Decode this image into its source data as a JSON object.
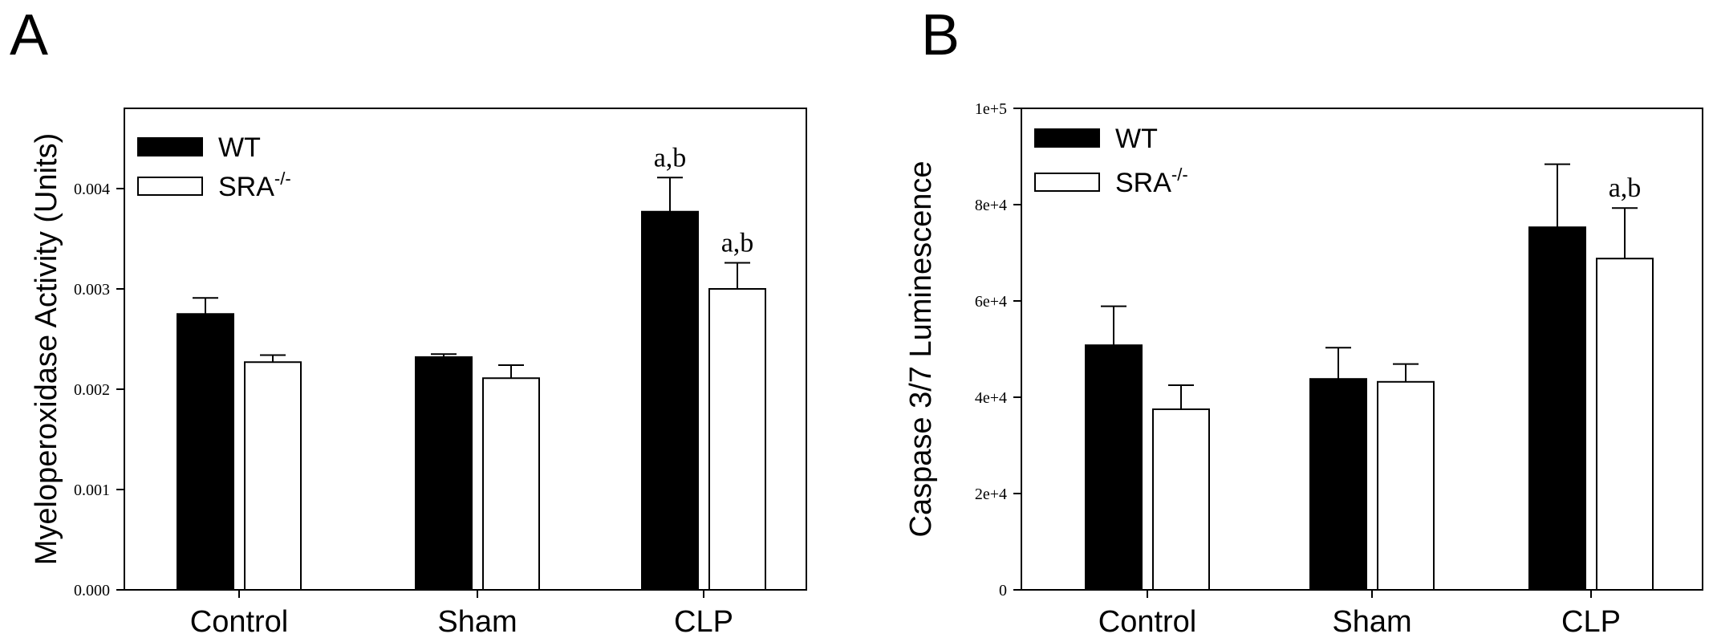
{
  "chart_data": [
    {
      "panel_label": "A",
      "type": "bar",
      "ylabel": "Myeloperoxidase Activity (Units)",
      "categories": [
        "Control",
        "Sham",
        "CLP"
      ],
      "ylim": [
        0,
        0.0048
      ],
      "yticks": [
        0,
        0.001,
        0.002,
        0.003,
        0.004
      ],
      "ytick_labels": [
        "0.000",
        "0.001",
        "0.002",
        "0.003",
        "0.004"
      ],
      "legend": {
        "position": "top-left"
      },
      "series": [
        {
          "name": "WT",
          "fill": "#000000",
          "values": [
            0.00275,
            0.00232,
            0.00377
          ],
          "errors": [
            0.00016,
            3e-05,
            0.00034
          ],
          "annotations": [
            "",
            "",
            "a,b"
          ]
        },
        {
          "name": "SRA",
          "name_sup": "-/-",
          "fill": "#ffffff",
          "values": [
            0.00227,
            0.00211,
            0.003
          ],
          "errors": [
            7e-05,
            0.00013,
            0.00026
          ],
          "annotations": [
            "",
            "",
            "a,b"
          ]
        }
      ]
    },
    {
      "panel_label": "B",
      "type": "bar",
      "ylabel": "Caspase 3/7 Luminescence",
      "categories": [
        "Control",
        "Sham",
        "CLP"
      ],
      "ylim": [
        0,
        100000
      ],
      "yticks": [
        0,
        20000,
        40000,
        60000,
        80000,
        100000
      ],
      "ytick_labels": [
        "0",
        "2e+4",
        "4e+4",
        "6e+4",
        "8e+4",
        "1e+5"
      ],
      "legend": {
        "position": "top-left"
      },
      "series": [
        {
          "name": "WT",
          "fill": "#000000",
          "values": [
            50800,
            43800,
            75300
          ],
          "errors": [
            8100,
            6500,
            13100
          ],
          "annotations": [
            "",
            "",
            ""
          ]
        },
        {
          "name": "SRA",
          "name_sup": "-/-",
          "fill": "#ffffff",
          "values": [
            37500,
            43200,
            68800
          ],
          "errors": [
            5000,
            3700,
            10500
          ],
          "annotations": [
            "",
            "",
            "a,b"
          ]
        }
      ]
    }
  ]
}
